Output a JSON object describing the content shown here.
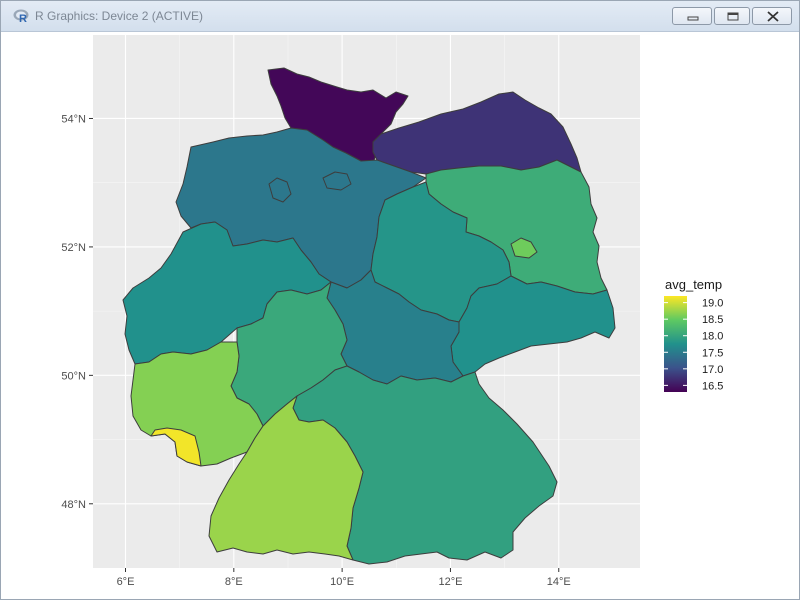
{
  "window": {
    "title": "R Graphics: Device 2 (ACTIVE)",
    "icon": "r-logo-icon",
    "controls": [
      "minimize-icon",
      "maximize-icon",
      "close-icon"
    ]
  },
  "chart_data": {
    "type": "choropleth-map",
    "title": "",
    "xlabel": "",
    "ylabel": "",
    "fill_variable": "avg_temp",
    "x_ticks": [
      6,
      8,
      10,
      12,
      14
    ],
    "x_tick_labels": [
      "6°E",
      "8°E",
      "10°E",
      "12°E",
      "14°E"
    ],
    "y_ticks": [
      48,
      50,
      52,
      54
    ],
    "y_tick_labels": [
      "48°N",
      "50°N",
      "52°N",
      "54°N"
    ],
    "xlim": [
      5.4,
      15.5
    ],
    "ylim": [
      47.0,
      55.3
    ],
    "grid": true,
    "panel_background": "#ebebeb",
    "legend": {
      "title": "avg_temp",
      "position": "right",
      "breaks": [
        19.0,
        18.5,
        18.0,
        17.5,
        17.0,
        16.5
      ],
      "break_labels": [
        "19.0",
        "18.5",
        "18.0",
        "17.5",
        "17.0",
        "16.5"
      ],
      "range": [
        16.3,
        19.2
      ],
      "palette": "viridis"
    },
    "regions": [
      {
        "name": "Schleswig-Holstein",
        "value": 16.35
      },
      {
        "name": "Mecklenburg-Vorpommern",
        "value": 16.75
      },
      {
        "name": "Niedersachsen",
        "value": 17.45
      },
      {
        "name": "Bremen",
        "value": 17.45
      },
      {
        "name": "Hamburg",
        "value": 17.45
      },
      {
        "name": "Brandenburg",
        "value": 18.1
      },
      {
        "name": "Berlin",
        "value": 18.55
      },
      {
        "name": "Sachsen-Anhalt",
        "value": 17.8
      },
      {
        "name": "Nordrhein-Westfalen",
        "value": 17.75
      },
      {
        "name": "Thüringen",
        "value": 17.55
      },
      {
        "name": "Sachsen",
        "value": 17.75
      },
      {
        "name": "Hessen",
        "value": 18.05
      },
      {
        "name": "Rheinland-Pfalz",
        "value": 18.65
      },
      {
        "name": "Saarland",
        "value": 19.15
      },
      {
        "name": "Bayern",
        "value": 17.95
      },
      {
        "name": "Baden-Württemberg",
        "value": 18.75
      }
    ]
  }
}
